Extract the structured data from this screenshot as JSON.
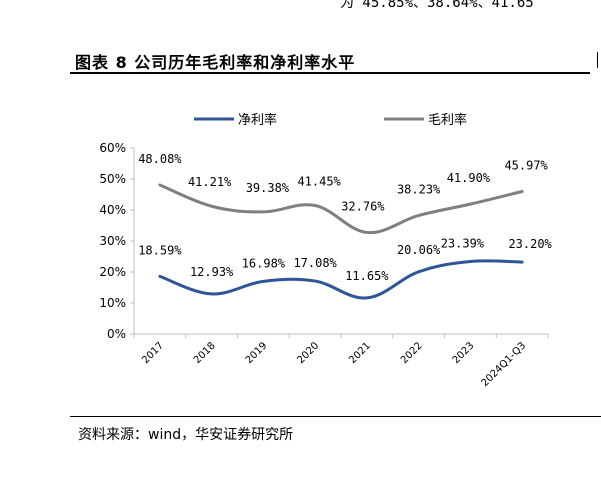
{
  "header": {
    "top_text": "为 45.85%、38.64%、41.65",
    "title": "图表 8 公司历年毛利率和净利率水平"
  },
  "footer": {
    "source": "资料来源：wind，华安证券研究所"
  },
  "colors": {
    "net_margin": "#2e5597",
    "gross_margin": "#7f7f7f",
    "axis": "#bfbfbf"
  },
  "chart_data": {
    "type": "line",
    "title": "",
    "xlabel": "",
    "ylabel": "",
    "categories": [
      "2017",
      "2018",
      "2019",
      "2020",
      "2021",
      "2022",
      "2023",
      "2024Q1-Q3"
    ],
    "ylim": [
      0,
      60
    ],
    "yticks": [
      0,
      10,
      20,
      30,
      40,
      50,
      60
    ],
    "ytick_labels": [
      "0%",
      "10%",
      "20%",
      "30%",
      "40%",
      "50%",
      "60%"
    ],
    "legend_position": "top",
    "grid": false,
    "series": [
      {
        "name": "净利率",
        "color": "#2e5597",
        "values": [
          18.59,
          12.93,
          16.98,
          17.08,
          11.65,
          20.06,
          23.39,
          23.2
        ],
        "labels": [
          "18.59%",
          "12.93%",
          "16.98%",
          "17.08%",
          "11.65%",
          "20.06%",
          "23.39%",
          "23.20%"
        ]
      },
      {
        "name": "毛利率",
        "color": "#7f7f7f",
        "values": [
          48.08,
          41.21,
          39.38,
          41.45,
          32.76,
          38.23,
          41.9,
          45.97
        ],
        "labels": [
          "48.08%",
          "41.21%",
          "39.38%",
          "41.45%",
          "32.76%",
          "38.23%",
          "41.90%",
          "45.97%"
        ]
      }
    ]
  }
}
